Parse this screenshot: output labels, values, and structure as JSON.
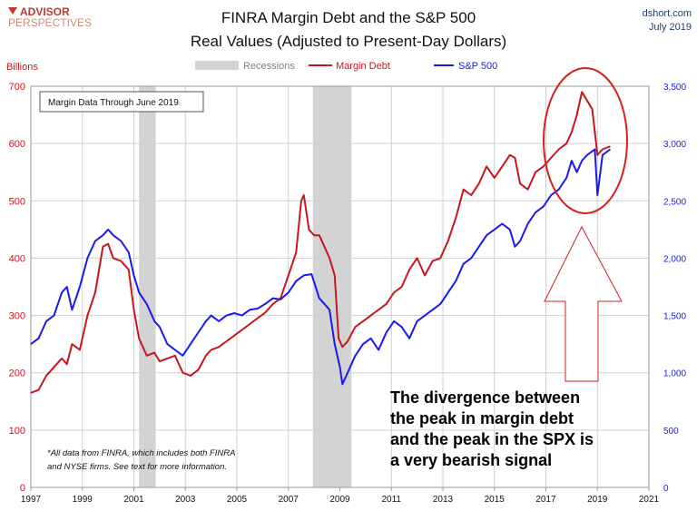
{
  "brand": {
    "logo_line1": "ADVISOR",
    "logo_line2": "PERSPECTIVES",
    "site": "dshort.com",
    "date": "July 2019"
  },
  "chart_data": {
    "type": "line",
    "title": "FINRA Margin Debt and the S&P 500",
    "subtitle": "Real Values (Adjusted to Present-Day Dollars)",
    "y_left_label": "Billions",
    "y_left_range": [
      0,
      700
    ],
    "y_left_ticks": [
      "0",
      "100",
      "200",
      "300",
      "400",
      "500",
      "600",
      "700"
    ],
    "y_right_range": [
      0,
      3500
    ],
    "y_right_ticks": [
      "0",
      "500",
      "1,000",
      "1,500",
      "2,000",
      "2,500",
      "3,000",
      "3,500"
    ],
    "x_range": [
      1997,
      2021
    ],
    "x_ticks": [
      "1997",
      "1999",
      "2001",
      "2003",
      "2005",
      "2007",
      "2009",
      "2011",
      "2013",
      "2015",
      "2017",
      "2019",
      "2021"
    ],
    "grid": true,
    "legend_position": "top",
    "recessions": [
      [
        2001.2,
        2001.85
      ],
      [
        2007.95,
        2009.45
      ]
    ],
    "legend": {
      "recessions": "Recessions",
      "margin_debt": "Margin Debt",
      "sp500": "S&P 500"
    },
    "series": [
      {
        "name": "Margin Debt",
        "axis": "left",
        "color": "#c8161d",
        "x": [
          1997.0,
          1997.3,
          1997.6,
          1997.9,
          1998.2,
          1998.4,
          1998.6,
          1998.9,
          1999.2,
          1999.5,
          1999.8,
          2000.0,
          2000.2,
          2000.5,
          2000.8,
          2001.0,
          2001.2,
          2001.5,
          2001.8,
          2002.0,
          2002.3,
          2002.6,
          2002.9,
          2003.2,
          2003.5,
          2003.8,
          2004.0,
          2004.3,
          2004.6,
          2004.9,
          2005.2,
          2005.5,
          2005.8,
          2006.1,
          2006.4,
          2006.7,
          2007.0,
          2007.3,
          2007.5,
          2007.6,
          2007.8,
          2008.0,
          2008.2,
          2008.4,
          2008.6,
          2008.8,
          2008.95,
          2009.1,
          2009.3,
          2009.6,
          2009.9,
          2010.2,
          2010.5,
          2010.8,
          2011.1,
          2011.4,
          2011.7,
          2012.0,
          2012.3,
          2012.6,
          2012.9,
          2013.2,
          2013.5,
          2013.8,
          2014.1,
          2014.4,
          2014.7,
          2015.0,
          2015.3,
          2015.6,
          2015.8,
          2016.0,
          2016.3,
          2016.6,
          2016.9,
          2017.2,
          2017.5,
          2017.8,
          2018.0,
          2018.2,
          2018.4,
          2018.6,
          2018.8,
          2019.0,
          2019.2,
          2019.5
        ],
        "values": [
          165,
          170,
          195,
          210,
          225,
          215,
          250,
          240,
          300,
          340,
          420,
          425,
          400,
          395,
          380,
          310,
          260,
          230,
          235,
          220,
          225,
          230,
          200,
          195,
          205,
          230,
          240,
          245,
          255,
          265,
          275,
          285,
          295,
          305,
          320,
          330,
          370,
          410,
          500,
          510,
          450,
          440,
          440,
          420,
          400,
          370,
          260,
          245,
          255,
          280,
          290,
          300,
          310,
          320,
          340,
          350,
          380,
          400,
          370,
          395,
          400,
          430,
          470,
          520,
          510,
          530,
          560,
          540,
          560,
          580,
          575,
          530,
          520,
          550,
          560,
          575,
          590,
          600,
          620,
          650,
          690,
          675,
          660,
          580,
          590,
          595
        ]
      },
      {
        "name": "S&P 500",
        "axis": "right",
        "color": "#1a1af0",
        "x": [
          1997.0,
          1997.3,
          1997.6,
          1997.9,
          1998.2,
          1998.4,
          1998.6,
          1998.9,
          1999.2,
          1999.5,
          1999.8,
          2000.0,
          2000.2,
          2000.5,
          2000.8,
          2001.0,
          2001.2,
          2001.5,
          2001.8,
          2002.0,
          2002.3,
          2002.6,
          2002.9,
          2003.2,
          2003.5,
          2003.8,
          2004.0,
          2004.3,
          2004.6,
          2004.9,
          2005.2,
          2005.5,
          2005.8,
          2006.1,
          2006.4,
          2006.7,
          2007.0,
          2007.3,
          2007.6,
          2007.9,
          2008.2,
          2008.4,
          2008.6,
          2008.8,
          2009.0,
          2009.1,
          2009.3,
          2009.6,
          2009.9,
          2010.2,
          2010.5,
          2010.8,
          2011.1,
          2011.4,
          2011.7,
          2012.0,
          2012.3,
          2012.6,
          2012.9,
          2013.2,
          2013.5,
          2013.8,
          2014.1,
          2014.4,
          2014.7,
          2015.0,
          2015.3,
          2015.6,
          2015.8,
          2016.0,
          2016.3,
          2016.6,
          2016.9,
          2017.2,
          2017.5,
          2017.8,
          2018.0,
          2018.2,
          2018.4,
          2018.6,
          2018.9,
          2019.0,
          2019.2,
          2019.5
        ],
        "values": [
          1250,
          1300,
          1450,
          1500,
          1700,
          1750,
          1550,
          1750,
          2000,
          2150,
          2200,
          2250,
          2200,
          2150,
          2050,
          1850,
          1700,
          1600,
          1450,
          1400,
          1250,
          1200,
          1150,
          1250,
          1350,
          1450,
          1500,
          1450,
          1500,
          1520,
          1500,
          1550,
          1560,
          1600,
          1650,
          1640,
          1700,
          1800,
          1850,
          1860,
          1650,
          1600,
          1550,
          1250,
          1050,
          900,
          1000,
          1150,
          1250,
          1300,
          1200,
          1350,
          1450,
          1400,
          1300,
          1450,
          1500,
          1550,
          1600,
          1700,
          1800,
          1950,
          2000,
          2100,
          2200,
          2250,
          2300,
          2250,
          2100,
          2150,
          2300,
          2400,
          2450,
          2550,
          2600,
          2700,
          2850,
          2750,
          2850,
          2900,
          2950,
          2550,
          2900,
          2950
        ]
      }
    ],
    "annotations": {
      "margin_box": "Margin Data Through June 2019",
      "callout_line1": "The divergence between",
      "callout_line2": "the peak in margin debt",
      "callout_line3": "and the peak in the SPX is",
      "callout_line4": "a very bearish signal",
      "footnote_line1": "*All data from FINRA, which includes both FINRA",
      "footnote_line2": "and NYSE firms. See text for more information."
    }
  }
}
